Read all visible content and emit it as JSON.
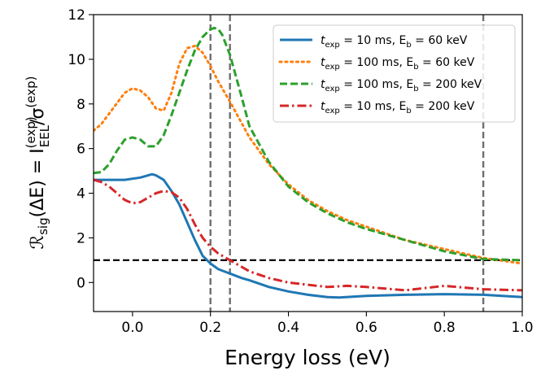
{
  "chart_data": {
    "type": "line",
    "title": "",
    "xlabel": "Energy loss (eV)",
    "ylabel": {
      "main": "ℛ",
      "main_sub": "sig",
      "arg": "(ΔE) = I",
      "sup1": "(exp)",
      "sub1": "EEL",
      "slash": "/σ",
      "sup2": "(exp)"
    },
    "xlim": [
      -0.1,
      1.0
    ],
    "ylim": [
      -1.3,
      12.0
    ],
    "xticks": [
      0.0,
      0.2,
      0.4,
      0.6,
      0.8,
      1.0
    ],
    "xtick_labels": [
      "0.0",
      "0.2",
      "0.4",
      "0.6",
      "0.8",
      "1.0"
    ],
    "yticks": [
      0,
      2,
      4,
      6,
      8,
      10,
      12
    ],
    "ytick_labels": [
      "0",
      "2",
      "4",
      "6",
      "8",
      "10",
      "12"
    ],
    "grid": false,
    "legend_position": "top-right",
    "vertical_lines": [
      0.2,
      0.25,
      0.9
    ],
    "horizontal_lines": [
      1.0
    ],
    "series": [
      {
        "name": "t_exp = 10 ms, E_b = 60 keV",
        "legend": {
          "t": "t",
          "tsub": "exp",
          "mid": " = 10 ms, E",
          "esub": "b",
          "tail": " = 60 keV"
        },
        "color": "#1f77b4",
        "style": "solid",
        "x": [
          -0.1,
          -0.08,
          -0.05,
          -0.02,
          0.0,
          0.02,
          0.04,
          0.05,
          0.06,
          0.08,
          0.1,
          0.12,
          0.14,
          0.16,
          0.18,
          0.2,
          0.22,
          0.25,
          0.28,
          0.3,
          0.35,
          0.4,
          0.45,
          0.5,
          0.53,
          0.6,
          0.7,
          0.8,
          0.9,
          1.0
        ],
        "y": [
          4.6,
          4.6,
          4.6,
          4.6,
          4.65,
          4.7,
          4.8,
          4.85,
          4.8,
          4.6,
          4.1,
          3.5,
          2.7,
          1.9,
          1.2,
          0.85,
          0.6,
          0.4,
          0.2,
          0.1,
          -0.2,
          -0.4,
          -0.55,
          -0.65,
          -0.67,
          -0.6,
          -0.55,
          -0.52,
          -0.55,
          -0.65
        ]
      },
      {
        "name": "t_exp = 100 ms, E_b = 60 keV",
        "legend": {
          "t": "t",
          "tsub": "exp",
          "mid": " = 100 ms, E",
          "esub": "b",
          "tail": " = 60 keV"
        },
        "color": "#ff7f0e",
        "style": "dotted",
        "x": [
          -0.1,
          -0.08,
          -0.05,
          -0.02,
          0.0,
          0.02,
          0.04,
          0.06,
          0.08,
          0.1,
          0.12,
          0.14,
          0.16,
          0.18,
          0.2,
          0.22,
          0.25,
          0.3,
          0.35,
          0.4,
          0.45,
          0.5,
          0.55,
          0.6,
          0.7,
          0.8,
          0.9,
          1.0
        ],
        "y": [
          6.8,
          7.1,
          7.8,
          8.5,
          8.7,
          8.6,
          8.3,
          7.8,
          7.7,
          8.5,
          9.8,
          10.5,
          10.6,
          10.3,
          9.7,
          9.0,
          8.1,
          6.5,
          5.3,
          4.4,
          3.7,
          3.2,
          2.8,
          2.5,
          1.9,
          1.5,
          1.1,
          0.85
        ]
      },
      {
        "name": "t_exp = 100 ms, E_b = 200 keV",
        "legend": {
          "t": "t",
          "tsub": "exp",
          "mid": " = 100 ms, E",
          "esub": "b",
          "tail": " = 200 keV"
        },
        "color": "#2ca02c",
        "style": "dashed",
        "x": [
          -0.1,
          -0.08,
          -0.06,
          -0.04,
          -0.02,
          0.0,
          0.02,
          0.04,
          0.06,
          0.08,
          0.1,
          0.12,
          0.14,
          0.16,
          0.18,
          0.2,
          0.21,
          0.22,
          0.23,
          0.25,
          0.28,
          0.3,
          0.35,
          0.4,
          0.45,
          0.5,
          0.55,
          0.6,
          0.7,
          0.8,
          0.9,
          1.0
        ],
        "y": [
          4.9,
          4.95,
          5.3,
          5.9,
          6.4,
          6.5,
          6.4,
          6.1,
          6.1,
          6.6,
          7.5,
          8.5,
          9.5,
          10.4,
          11.0,
          11.35,
          11.4,
          11.35,
          11.1,
          10.2,
          8.3,
          7.0,
          5.4,
          4.3,
          3.6,
          3.1,
          2.7,
          2.4,
          1.9,
          1.4,
          1.05,
          1.0
        ]
      },
      {
        "name": "t_exp = 10 ms, E_b = 200 keV",
        "legend": {
          "t": "t",
          "tsub": "exp",
          "mid": " = 10 ms, E",
          "esub": "b",
          "tail": " = 200 keV"
        },
        "color": "#d62728",
        "style": "dashdot",
        "x": [
          -0.1,
          -0.08,
          -0.06,
          -0.04,
          -0.02,
          0.0,
          0.02,
          0.04,
          0.06,
          0.08,
          0.1,
          0.12,
          0.14,
          0.16,
          0.18,
          0.2,
          0.22,
          0.25,
          0.28,
          0.3,
          0.35,
          0.4,
          0.45,
          0.5,
          0.55,
          0.6,
          0.7,
          0.8,
          0.9,
          1.0
        ],
        "y": [
          4.6,
          4.5,
          4.3,
          4.0,
          3.7,
          3.55,
          3.6,
          3.8,
          4.0,
          4.1,
          4.05,
          3.8,
          3.3,
          2.6,
          2.0,
          1.6,
          1.3,
          1.0,
          0.7,
          0.5,
          0.2,
          0.0,
          -0.1,
          -0.2,
          -0.15,
          -0.2,
          -0.35,
          -0.15,
          -0.3,
          -0.35
        ]
      }
    ]
  }
}
